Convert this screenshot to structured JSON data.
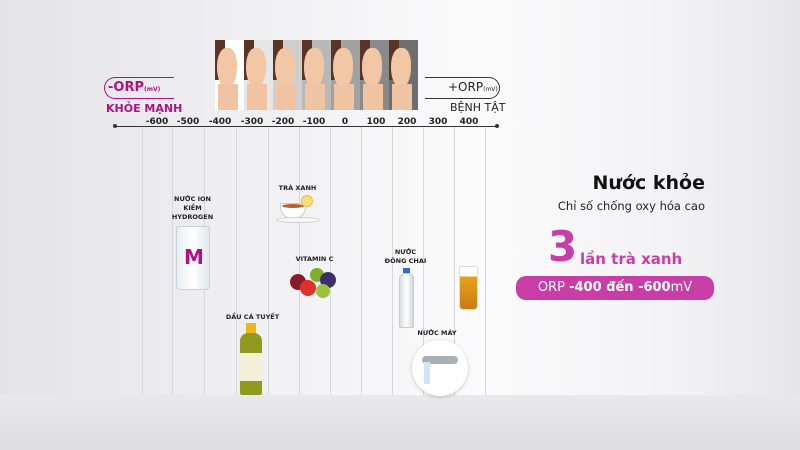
{
  "scale": {
    "left": {
      "label": "-ORP",
      "unit": "(mV)",
      "caption": "KHỎE MẠNH"
    },
    "right": {
      "label": "+ORP",
      "unit": "(mV)",
      "caption": "BỆNH TẬT"
    },
    "ticks": [
      "-600",
      "-500",
      "-400",
      "-300",
      "-200",
      "-100",
      "0",
      "100",
      "200",
      "300",
      "400"
    ]
  },
  "items": {
    "hydrogen": "NƯỚC ION KIỀM HYDROGEN",
    "tea": "TRÀ XANH",
    "vitc": "VITAMIN C",
    "fishoil": "DẦU CÁ TUYẾT",
    "bottled": "NƯỚC ĐÓNG CHAI",
    "tap": "NƯỚC MÁY"
  },
  "panel": {
    "title": "Nước khỏe",
    "subtitle": "Chỉ số chống oxy hóa cao",
    "big_number": "3",
    "comparison": "lần trà xanh",
    "badge": {
      "prefix": "ORP ",
      "v1": "-400",
      "mid": " đến ",
      "v2": "-600",
      "unit": "mV"
    }
  },
  "colors": {
    "accent": "#b0127f",
    "badge_bg": "#c93ea6"
  }
}
